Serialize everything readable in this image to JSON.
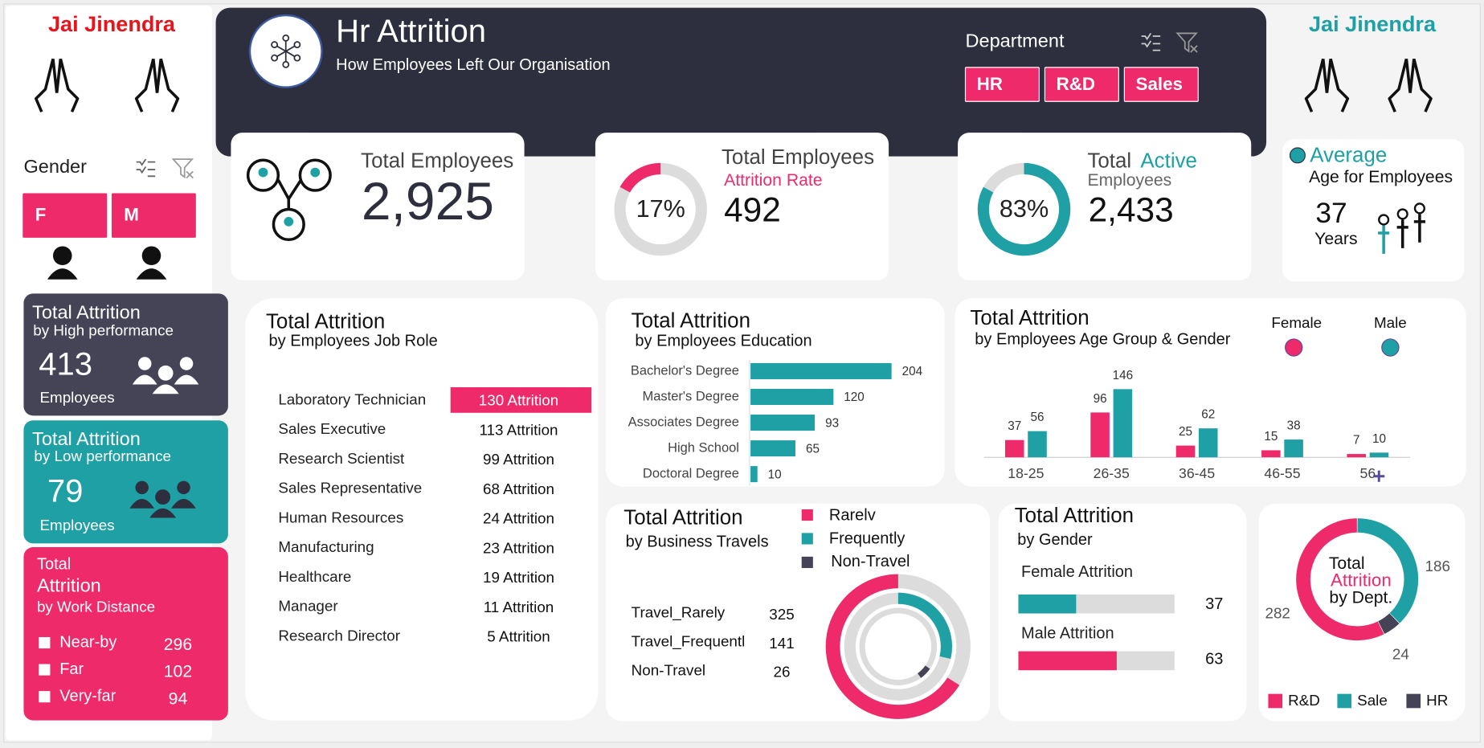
{
  "greetings": [
    "Jai Jinendra",
    "Jai Jinendra"
  ],
  "header": {
    "title": "Hr Attrition",
    "subtitle": "How Employees Left Our Organisation"
  },
  "department_filter": {
    "title": "Department",
    "options": [
      "HR",
      "R&D",
      "Sales"
    ]
  },
  "gender_filter": {
    "title": "Gender",
    "options": [
      "F",
      "M"
    ]
  },
  "kpis": {
    "total_employees": {
      "title": "Total Employees",
      "value": "2,925"
    },
    "attrition": {
      "title": "Total Employees",
      "subtitle": "Attrition Rate",
      "value": "492",
      "rate": 17,
      "rate_label": "17%",
      "color": "#ee2a6b"
    },
    "active": {
      "title": "Total",
      "title_accent": "Active",
      "subtitle": "Employees",
      "value": "2,433",
      "rate": 83,
      "rate_label": "83%",
      "color": "#1fa0a5"
    },
    "average_age": {
      "title": "Average",
      "subtitle": "Age for Employees",
      "value": "37",
      "unit": "Years"
    }
  },
  "side_cards": {
    "high_performance": {
      "title": "Total Attrition",
      "subtitle": "by High performance",
      "value": "413",
      "unit": "Employees"
    },
    "low_performance": {
      "title": "Total Attrition",
      "subtitle": "by Low performance",
      "value": "79",
      "unit": "Employees"
    },
    "work_distance": {
      "title": "Total",
      "title_2": "Attrition",
      "subtitle": "by Work Distance",
      "rows": [
        [
          "Near-by",
          "296"
        ],
        [
          "Far",
          "102"
        ],
        [
          "Very-far",
          "94"
        ]
      ]
    }
  },
  "job_role_table": {
    "title": "Total Attrition",
    "subtitle": "by Employees Job Role",
    "rows": [
      [
        "Laboratory Technician",
        "130 Attrition"
      ],
      [
        "Sales Executive",
        "113 Attrition"
      ],
      [
        "Research Scientist",
        "99 Attrition"
      ],
      [
        "Sales Representative",
        "68 Attrition"
      ],
      [
        "Human Resources",
        "24 Attrition"
      ],
      [
        "Manufacturing",
        "23 Attrition"
      ],
      [
        "Healthcare",
        "19 Attrition"
      ],
      [
        "Manager",
        "11 Attrition"
      ],
      [
        "Research Director",
        "5 Attrition"
      ]
    ]
  },
  "chart_data": [
    {
      "type": "bar",
      "orientation": "horizontal",
      "title": "Total Attrition",
      "subtitle": "by Employees Education",
      "categories": [
        "Bachelor's Degree",
        "Master's Degree",
        "Associates Degree",
        "High School",
        "Doctoral Degree"
      ],
      "values": [
        204,
        120,
        93,
        65,
        10
      ],
      "color": "#1fa0a5"
    },
    {
      "type": "bar",
      "orientation": "vertical",
      "title": "Total Attrition",
      "subtitle": "by Employees Age Group & Gender",
      "categories": [
        "18-25",
        "26-35",
        "36-45",
        "46-55",
        "56"
      ],
      "series": [
        {
          "name": "Female",
          "color": "#ee2a6b",
          "values": [
            37,
            96,
            25,
            15,
            7
          ]
        },
        {
          "name": "Male",
          "color": "#1fa0a5",
          "values": [
            56,
            146,
            62,
            38,
            10
          ]
        }
      ],
      "legend": "top-right"
    },
    {
      "type": "nested-donut",
      "title": "Total Attrition",
      "subtitle": "by Business Travels",
      "categories": [
        "Rarelv",
        "Frequently",
        "Non-Travel"
      ],
      "table_labels": [
        "Travel_Rarely",
        "Travel_Frequentl",
        "Non-Travel"
      ],
      "values": [
        325,
        141,
        26
      ],
      "colors": [
        "#ee2a6b",
        "#1fa0a5",
        "#454457"
      ]
    },
    {
      "type": "bar",
      "orientation": "horizontal",
      "title": "Total Attrition",
      "subtitle": "by Gender",
      "categories": [
        "Female Attrition",
        "Male Attrition"
      ],
      "values": [
        37,
        63
      ],
      "colors": [
        "#1fa0a5",
        "#ee2a6b"
      ]
    },
    {
      "type": "donut",
      "center_text": [
        "Total",
        "Attrition",
        "by Dept."
      ],
      "categories": [
        "R&D",
        "Sale",
        "HR"
      ],
      "values": [
        282,
        186,
        24
      ],
      "colors": [
        "#ee2a6b",
        "#1fa0a5",
        "#454457"
      ],
      "legend": "bottom"
    }
  ]
}
